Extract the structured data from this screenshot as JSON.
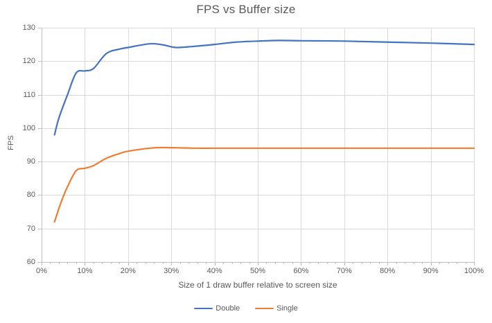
{
  "chart_data": {
    "type": "line",
    "title": "FPS vs Buffer size",
    "xlabel": "Size of 1 draw buffer relative to screen size",
    "ylabel": "FPS",
    "xlim": [
      0,
      100
    ],
    "ylim": [
      60,
      130
    ],
    "grid": true,
    "legend_position": "bottom",
    "x_minor_tick_step": 2,
    "x_ticks": [
      {
        "value": 0,
        "label": "0%"
      },
      {
        "value": 10,
        "label": "10%"
      },
      {
        "value": 20,
        "label": "20%"
      },
      {
        "value": 30,
        "label": "30%"
      },
      {
        "value": 40,
        "label": "40%"
      },
      {
        "value": 50,
        "label": "50%"
      },
      {
        "value": 60,
        "label": "60%"
      },
      {
        "value": 70,
        "label": "70%"
      },
      {
        "value": 80,
        "label": "80%"
      },
      {
        "value": 90,
        "label": "90%"
      },
      {
        "value": 100,
        "label": "100%"
      }
    ],
    "y_ticks": [
      {
        "value": 60,
        "label": "60"
      },
      {
        "value": 70,
        "label": "70"
      },
      {
        "value": 80,
        "label": "80"
      },
      {
        "value": 90,
        "label": "90"
      },
      {
        "value": 100,
        "label": "100"
      },
      {
        "value": 110,
        "label": "110"
      },
      {
        "value": 120,
        "label": "120"
      },
      {
        "value": 130,
        "label": "130"
      }
    ],
    "series": [
      {
        "name": "Double",
        "color": "#4472C4",
        "points": [
          [
            3,
            98
          ],
          [
            4,
            103
          ],
          [
            6,
            110
          ],
          [
            8,
            116.5
          ],
          [
            10,
            117.1
          ],
          [
            12,
            117.8
          ],
          [
            15,
            122.3
          ],
          [
            18,
            123.6
          ],
          [
            20,
            124.1
          ],
          [
            25,
            125.2
          ],
          [
            28,
            124.9
          ],
          [
            31,
            124.1
          ],
          [
            35,
            124.4
          ],
          [
            40,
            125
          ],
          [
            45,
            125.7
          ],
          [
            50,
            126
          ],
          [
            55,
            126.2
          ],
          [
            60,
            126.1
          ],
          [
            70,
            126
          ],
          [
            80,
            125.7
          ],
          [
            90,
            125.4
          ],
          [
            100,
            125
          ]
        ]
      },
      {
        "name": "Single",
        "color": "#ED7D31",
        "points": [
          [
            3,
            72
          ],
          [
            4,
            76
          ],
          [
            5,
            79.5
          ],
          [
            6,
            82.5
          ],
          [
            8,
            87.3
          ],
          [
            10,
            88
          ],
          [
            12,
            88.8
          ],
          [
            15,
            91
          ],
          [
            18,
            92.4
          ],
          [
            20,
            93.1
          ],
          [
            25,
            94
          ],
          [
            28,
            94.2
          ],
          [
            32,
            94.1
          ],
          [
            36,
            94
          ],
          [
            40,
            94
          ],
          [
            50,
            94
          ],
          [
            60,
            94
          ],
          [
            70,
            94
          ],
          [
            80,
            94
          ],
          [
            90,
            94
          ],
          [
            100,
            94
          ]
        ]
      }
    ],
    "colors": {
      "gridline": "#D9D9D9",
      "axis_line": "#BFBFBF",
      "text": "#595959",
      "background": "#FFFFFF"
    }
  }
}
